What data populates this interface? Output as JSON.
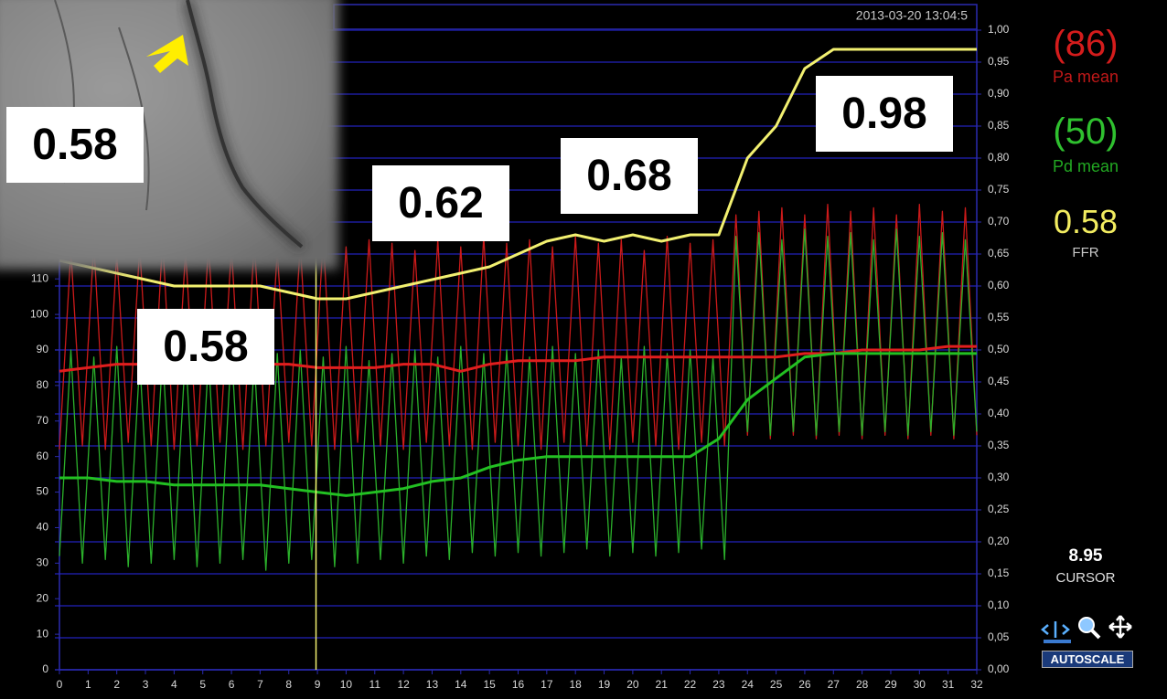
{
  "chart_data": {
    "type": "line",
    "timestamp": "2013-03-20 13:04:5",
    "x": [
      0,
      0.4,
      0.8,
      1.2,
      1.6,
      2,
      2.4,
      2.8,
      3.2,
      3.6,
      4,
      4.4,
      4.8,
      5.2,
      5.6,
      6,
      6.4,
      6.8,
      7.2,
      7.6,
      8,
      8.4,
      8.8,
      9.2,
      9.6,
      10,
      10.4,
      10.8,
      11.2,
      11.6,
      12,
      12.4,
      12.8,
      13.2,
      13.6,
      14,
      14.4,
      14.8,
      15.2,
      15.6,
      16,
      16.4,
      16.8,
      17.2,
      17.6,
      18,
      18.4,
      18.8,
      19.2,
      19.6,
      20,
      20.4,
      20.8,
      21.2,
      21.6,
      22,
      22.4,
      22.8,
      23.2,
      23.6,
      24,
      24.4,
      24.8,
      25.2,
      25.6,
      26,
      26.4,
      26.8,
      27.2,
      27.6,
      28,
      28.4,
      28.8,
      29.2,
      29.6,
      30,
      30.4,
      30.8,
      31.2,
      31.6,
      32
    ],
    "series": [
      {
        "color": "#cc1a1a",
        "values": [
          62,
          118,
          63,
          120,
          62,
          117,
          64,
          119,
          63,
          121,
          62,
          118,
          63,
          120,
          64,
          119,
          62,
          121,
          63,
          118,
          64,
          120,
          63,
          122,
          62,
          119,
          64,
          121,
          63,
          120,
          62,
          118,
          64,
          121,
          63,
          119,
          62,
          122,
          64,
          120,
          63,
          121,
          62,
          119,
          64,
          122,
          63,
          120,
          62,
          121,
          64,
          118,
          63,
          122,
          62,
          120,
          64,
          121,
          63,
          128,
          66,
          129,
          65,
          130,
          66,
          128,
          65,
          131,
          66,
          129,
          65,
          130,
          66,
          128,
          65,
          131,
          66,
          129,
          65,
          130,
          66
        ]
      },
      {
        "color": "#2bb02b",
        "values": [
          32,
          90,
          30,
          88,
          31,
          91,
          29,
          87,
          30,
          89,
          31,
          90,
          29,
          88,
          30,
          91,
          31,
          87,
          28,
          89,
          30,
          90,
          31,
          88,
          29,
          91,
          30,
          87,
          31,
          89,
          30,
          90,
          32,
          88,
          31,
          91,
          33,
          89,
          32,
          90,
          33,
          88,
          32,
          91,
          33,
          89,
          34,
          90,
          32,
          88,
          33,
          91,
          32,
          89,
          33,
          90,
          34,
          88,
          31,
          122,
          67,
          123,
          66,
          121,
          67,
          124,
          66,
          122,
          67,
          123,
          66,
          121,
          67,
          124,
          66,
          122,
          67,
          123,
          66,
          121,
          67
        ]
      },
      {
        "color": "#e01e1e",
        "x": [
          0,
          1,
          2,
          3,
          4,
          5,
          6,
          7,
          8,
          9,
          10,
          11,
          12,
          13,
          14,
          15,
          16,
          17,
          18,
          19,
          20,
          21,
          22,
          23,
          24,
          25,
          26,
          27,
          28,
          29,
          30,
          31,
          32
        ],
        "values": [
          84,
          85,
          86,
          86,
          86,
          86,
          86,
          86,
          86,
          85,
          85,
          85,
          86,
          86,
          84,
          86,
          87,
          87,
          87,
          88,
          88,
          88,
          88,
          88,
          88,
          88,
          89,
          89,
          90,
          90,
          90,
          91,
          91
        ]
      },
      {
        "color": "#22c022",
        "x": [
          0,
          1,
          2,
          3,
          4,
          5,
          6,
          7,
          8,
          9,
          10,
          11,
          12,
          13,
          14,
          15,
          16,
          17,
          18,
          19,
          20,
          21,
          22,
          23,
          24,
          25,
          26,
          27,
          28,
          29,
          30,
          31,
          32
        ],
        "values": [
          54,
          54,
          53,
          53,
          52,
          52,
          52,
          52,
          51,
          50,
          49,
          50,
          51,
          53,
          54,
          57,
          59,
          60,
          60,
          60,
          60,
          60,
          60,
          65,
          76,
          82,
          88,
          89,
          89,
          89,
          89,
          89,
          89
        ]
      },
      {
        "color": "#f2f070",
        "axis": "y2",
        "x": [
          0,
          1,
          2,
          3,
          4,
          5,
          6,
          7,
          8,
          9,
          10,
          11,
          12,
          13,
          14,
          15,
          16,
          17,
          18,
          19,
          20,
          21,
          22,
          23,
          24,
          25,
          26,
          27,
          28,
          29,
          30,
          31,
          32
        ],
        "values": [
          0.64,
          0.63,
          0.62,
          0.61,
          0.6,
          0.6,
          0.6,
          0.6,
          0.59,
          0.58,
          0.58,
          0.59,
          0.6,
          0.61,
          0.62,
          0.63,
          0.65,
          0.67,
          0.68,
          0.67,
          0.68,
          0.67,
          0.68,
          0.68,
          0.8,
          0.85,
          0.94,
          0.97,
          0.97,
          0.97,
          0.97,
          0.97,
          0.97
        ]
      }
    ],
    "xlim": [
      0,
      32
    ],
    "xticks": [
      0,
      1,
      2,
      3,
      4,
      5,
      6,
      7,
      8,
      9,
      10,
      11,
      12,
      13,
      14,
      15,
      16,
      17,
      18,
      19,
      20,
      21,
      22,
      23,
      24,
      25,
      26,
      27,
      28,
      29,
      30,
      31,
      32
    ],
    "ylim": [
      0,
      180
    ],
    "yticks": [
      0,
      10,
      20,
      30,
      40,
      50,
      60,
      70,
      80,
      90,
      100,
      110
    ],
    "y2lim": [
      0,
      1
    ],
    "y2ticks": [
      {
        "value": 0,
        "label": "0,00"
      },
      {
        "value": 0.05,
        "label": "0,05"
      },
      {
        "value": 0.1,
        "label": "0,10"
      },
      {
        "value": 0.15,
        "label": "0,15"
      },
      {
        "value": 0.2,
        "label": "0,20"
      },
      {
        "value": 0.25,
        "label": "0,25"
      },
      {
        "value": 0.3,
        "label": "0,30"
      },
      {
        "value": 0.35,
        "label": "0,35"
      },
      {
        "value": 0.4,
        "label": "0,40"
      },
      {
        "value": 0.45,
        "label": "0,45"
      },
      {
        "value": 0.5,
        "label": "0,50"
      },
      {
        "value": 0.55,
        "label": "0,55"
      },
      {
        "value": 0.6,
        "label": "0,60"
      },
      {
        "value": 0.65,
        "label": "0,65"
      },
      {
        "value": 0.7,
        "label": "0,70"
      },
      {
        "value": 0.75,
        "label": "0,75"
      },
      {
        "value": 0.8,
        "label": "0,80"
      },
      {
        "value": 0.85,
        "label": "0,85"
      },
      {
        "value": 0.9,
        "label": "0,90"
      },
      {
        "value": 0.95,
        "label": "0,95"
      },
      {
        "value": 1,
        "label": "1,00"
      }
    ],
    "grid": true,
    "cursor": 8.95,
    "annotations": [
      0.58,
      0.58,
      0.62,
      0.68,
      0.98
    ]
  },
  "panel": {
    "pa_value": "(86)",
    "pa_label": "Pa mean",
    "pd_value": "(50)",
    "pd_label": "Pd mean",
    "ffr_value": 0.58,
    "ffr_label": "FFR",
    "cursor_label": "CURSOR",
    "autoscale": "AUTOSCALE"
  }
}
